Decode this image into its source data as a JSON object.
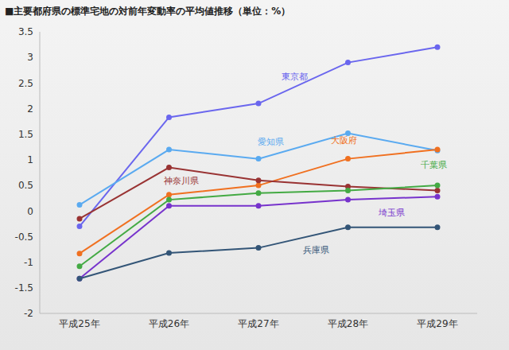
{
  "chart_data": {
    "type": "line",
    "title": "■主要都府県の標準宅地の対前年変動率の平均値推移（単位：%）",
    "categories": [
      "平成25年",
      "平成26年",
      "平成27年",
      "平成28年",
      "平成29年"
    ],
    "series": [
      {
        "name": "東京都",
        "color": "#6a66ee",
        "values": [
          -0.3,
          1.83,
          2.1,
          2.9,
          3.2
        ]
      },
      {
        "name": "愛知県",
        "color": "#5aaaf0",
        "values": [
          0.12,
          1.2,
          1.02,
          1.52,
          1.18
        ]
      },
      {
        "name": "大阪府",
        "color": "#f07020",
        "values": [
          -0.83,
          0.32,
          0.5,
          1.02,
          1.2
        ]
      },
      {
        "name": "神奈川県",
        "color": "#993333",
        "values": [
          -0.15,
          0.85,
          0.6,
          0.48,
          0.4
        ]
      },
      {
        "name": "千葉県",
        "color": "#44aa44",
        "values": [
          -1.08,
          0.22,
          0.35,
          0.4,
          0.5
        ]
      },
      {
        "name": "埼玉県",
        "color": "#7733cc",
        "values": [
          -1.32,
          0.1,
          0.1,
          0.22,
          0.28
        ]
      },
      {
        "name": "兵庫県",
        "color": "#335577",
        "values": [
          -1.32,
          -0.82,
          -0.72,
          -0.32,
          -0.32
        ]
      }
    ],
    "ylim": [
      -2,
      3.5
    ],
    "yticks": [
      -2,
      -1.5,
      -1,
      -0.5,
      0,
      0.5,
      1,
      1.5,
      2,
      2.5,
      3,
      3.5
    ],
    "grid": false,
    "marker": "circle",
    "line_style": "solid"
  }
}
